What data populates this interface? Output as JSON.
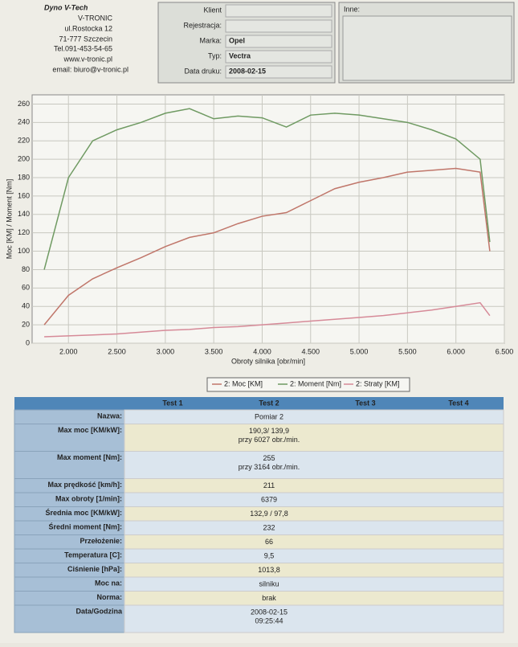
{
  "company": {
    "brand": "Dyno V-Tech",
    "name": "V-TRONIC",
    "street": "ul.Rostocka 12",
    "city": "71-777 Szczecin",
    "phone": "Tel.091-453-54-65",
    "web": "www.v-tronic.pl",
    "email": "email: biuro@v-tronic.pl"
  },
  "form": {
    "fields": [
      {
        "label": "Klient",
        "value": ""
      },
      {
        "label": "Rejestracja:",
        "value": ""
      },
      {
        "label": "Marka:",
        "value": "Opel"
      },
      {
        "label": "Typ:",
        "value": "Vectra"
      },
      {
        "label": "Data druku:",
        "value": "2008-02-15"
      }
    ],
    "other": "Inne:"
  },
  "chart_data": {
    "type": "line",
    "xlabel": "Obroty silnika [obr/min]",
    "ylabel": "Moc [KM] / Moment [Nm]",
    "x": [
      1750,
      2000,
      2250,
      2500,
      2750,
      3000,
      3250,
      3500,
      3750,
      4000,
      4250,
      4500,
      4750,
      5000,
      5250,
      5500,
      5750,
      6000,
      6250,
      6350
    ],
    "series": [
      {
        "name": "2: Moc [KM]",
        "color": "#c0766a",
        "values": [
          20,
          52,
          70,
          82,
          93,
          105,
          115,
          120,
          130,
          138,
          142,
          155,
          168,
          175,
          180,
          186,
          188,
          190,
          186,
          100
        ]
      },
      {
        "name": "2: Moment [Nm]",
        "color": "#6f9a62",
        "values": [
          80,
          180,
          220,
          232,
          240,
          250,
          255,
          244,
          247,
          245,
          235,
          248,
          250,
          248,
          244,
          240,
          232,
          222,
          200,
          110
        ]
      },
      {
        "name": "2: Straty [KM]",
        "color": "#d68a98",
        "values": [
          7,
          8,
          9,
          10,
          12,
          14,
          15,
          17,
          18,
          20,
          22,
          24,
          26,
          28,
          30,
          33,
          36,
          40,
          44,
          30
        ]
      }
    ],
    "xlim": [
      1625,
      6500
    ],
    "ylim": [
      0,
      270
    ],
    "xticks": [
      {
        "value": 2000,
        "label": "2.000"
      },
      {
        "value": 2500,
        "label": "2.500"
      },
      {
        "value": 3000,
        "label": "3.000"
      },
      {
        "value": 3500,
        "label": "3.500"
      },
      {
        "value": 4000,
        "label": "4.000"
      },
      {
        "value": 4500,
        "label": "4.500"
      },
      {
        "value": 5000,
        "label": "5.000"
      },
      {
        "value": 5500,
        "label": "5.500"
      },
      {
        "value": 6000,
        "label": "6.000"
      },
      {
        "value": 6500,
        "label": "6.500"
      }
    ],
    "yticks": [
      0,
      20,
      40,
      60,
      80,
      100,
      120,
      140,
      160,
      180,
      200,
      220,
      240,
      260
    ],
    "grid": true
  },
  "table": {
    "header": [
      "Test 1",
      "Test 2",
      "Test 3",
      "Test 4"
    ],
    "rows": [
      {
        "label": "Nazwa:",
        "lines": [
          "Pomiar 2"
        ]
      },
      {
        "label": "Max moc [KM/kW]:",
        "lines": [
          "190,3/ 139,9",
          "przy 6027 obr./min."
        ]
      },
      {
        "label": "Max moment [Nm]:",
        "lines": [
          "255",
          "przy 3164 obr./min."
        ]
      },
      {
        "label": "Max prędkość [km/h]:",
        "lines": [
          "211"
        ]
      },
      {
        "label": "Max obroty [1/min]:",
        "lines": [
          "6379"
        ]
      },
      {
        "label": "Średnia moc [KM/kW]:",
        "lines": [
          "132,9 / 97,8"
        ]
      },
      {
        "label": "Średni moment [Nm]:",
        "lines": [
          "232"
        ]
      },
      {
        "label": "Przełożenie:",
        "lines": [
          "66"
        ]
      },
      {
        "label": "Temperatura [C]:",
        "lines": [
          "9,5"
        ]
      },
      {
        "label": "Ciśnienie [hPa]:",
        "lines": [
          "1013,8"
        ]
      },
      {
        "label": "Moc na:",
        "lines": [
          "silniku"
        ]
      },
      {
        "label": "Norma:",
        "lines": [
          "brak"
        ]
      },
      {
        "label": "Data/Godzina",
        "lines": [
          "2008-02-15",
          "09:25:44"
        ]
      }
    ]
  }
}
